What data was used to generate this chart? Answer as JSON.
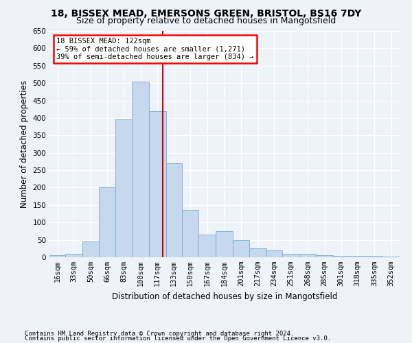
{
  "title1": "18, BISSEX MEAD, EMERSONS GREEN, BRISTOL, BS16 7DY",
  "title2": "Size of property relative to detached houses in Mangotsfield",
  "xlabel": "Distribution of detached houses by size in Mangotsfield",
  "ylabel": "Number of detached properties",
  "footnote1": "Contains HM Land Registry data © Crown copyright and database right 2024.",
  "footnote2": "Contains public sector information licensed under the Open Government Licence v3.0.",
  "annotation_line1": "18 BISSEX MEAD: 122sqm",
  "annotation_line2": "← 59% of detached houses are smaller (1,271)",
  "annotation_line3": "39% of semi-detached houses are larger (834) →",
  "bar_color": "#c5d8ed",
  "bar_edge_color": "#7aadd4",
  "vline_x": 122,
  "vline_color": "#cc0000",
  "categories": [
    "16sqm",
    "33sqm",
    "50sqm",
    "66sqm",
    "83sqm",
    "100sqm",
    "117sqm",
    "133sqm",
    "150sqm",
    "167sqm",
    "184sqm",
    "201sqm",
    "217sqm",
    "234sqm",
    "251sqm",
    "268sqm",
    "285sqm",
    "301sqm",
    "318sqm",
    "335sqm",
    "352sqm"
  ],
  "bin_edges": [
    8,
    24,
    41,
    58,
    74,
    91,
    108,
    125,
    141,
    158,
    175,
    192,
    209,
    226,
    242,
    259,
    276,
    293,
    309,
    326,
    343,
    360
  ],
  "bar_heights": [
    5,
    10,
    45,
    200,
    395,
    505,
    420,
    270,
    135,
    65,
    75,
    50,
    25,
    20,
    10,
    10,
    5,
    4,
    3,
    3,
    2
  ],
  "ylim": [
    0,
    650
  ],
  "yticks": [
    0,
    50,
    100,
    150,
    200,
    250,
    300,
    350,
    400,
    450,
    500,
    550,
    600,
    650
  ],
  "bg_color": "#eef2f9",
  "grid_color": "#ffffff",
  "title1_fontsize": 10,
  "title2_fontsize": 9,
  "axis_fontsize": 8.5,
  "tick_fontsize": 7.5,
  "footnote_fontsize": 6.5
}
